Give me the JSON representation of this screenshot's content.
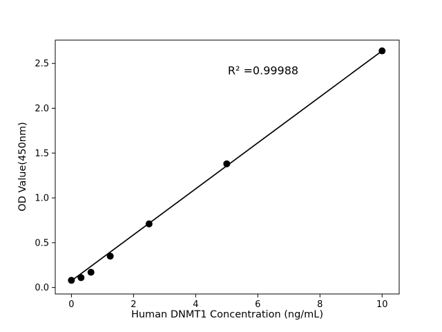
{
  "figure": {
    "background": "#ffffff"
  },
  "chart_data": {
    "type": "scatter",
    "title": "",
    "xlabel": "Human DNMT1 Concentration (ng/mL)",
    "ylabel": "OD Value(450nm)",
    "annotation": "R² =0.99988",
    "x": [
      0,
      0.31,
      0.63,
      1.25,
      2.5,
      5,
      10
    ],
    "y": [
      0.08,
      0.11,
      0.17,
      0.35,
      0.71,
      1.38,
      2.64
    ],
    "fit_line": {
      "x": [
        0,
        10
      ],
      "y": [
        0.075,
        2.64
      ]
    },
    "xticks": [
      0,
      2,
      4,
      6,
      8,
      10
    ],
    "xtick_labels": [
      "0",
      "2",
      "4",
      "6",
      "8",
      "10"
    ],
    "yticks": [
      0,
      0.5,
      1.0,
      1.5,
      2.0,
      2.5
    ],
    "ytick_labels": [
      "0.0",
      "0.5",
      "1.0",
      "1.5",
      "2.0",
      "2.5"
    ],
    "xlim": [
      -0.52,
      10.55
    ],
    "ylim": [
      -0.072,
      2.76
    ],
    "grid": false,
    "legend": "none",
    "marker_color": "#000000",
    "marker_radius": 5,
    "line_color": "#000000",
    "axis_color": "#000000"
  }
}
